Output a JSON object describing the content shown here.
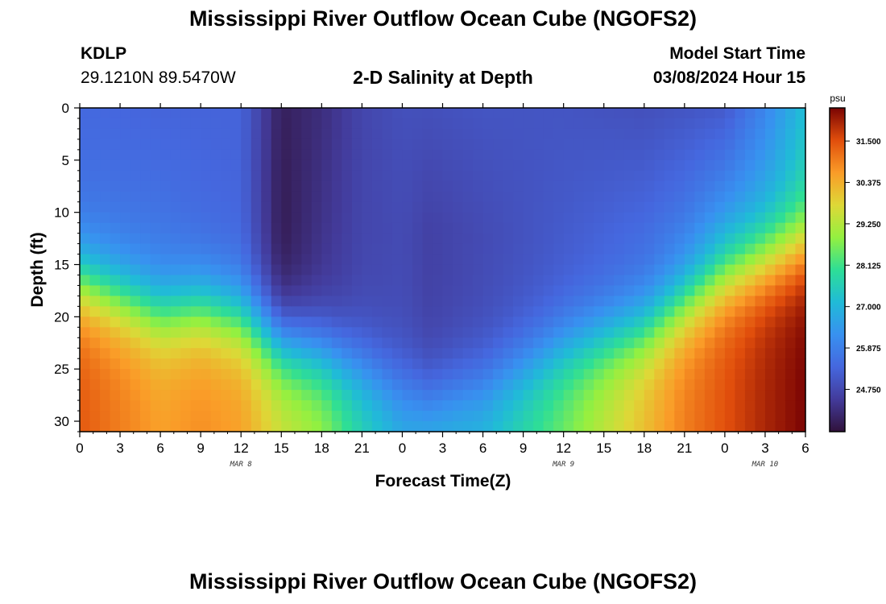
{
  "header": {
    "title": "Mississippi River Outflow Ocean Cube (NGOFS2)",
    "station": "KDLP",
    "coords": "29.1210N  89.5470W",
    "subtitle": "2-D Salinity at Depth",
    "start_label": "Model Start Time",
    "start_value": "03/08/2024 Hour 15"
  },
  "footer": {
    "title": "Mississippi River Outflow Ocean Cube (NGOFS2)"
  },
  "chart_data": {
    "type": "heatmap",
    "title": "2-D Salinity at Depth",
    "xlabel": "Forecast Time(Z)",
    "ylabel": "Depth (ft)",
    "x_ticks": [
      "0",
      "3",
      "6",
      "9",
      "12",
      "15",
      "18",
      "21",
      "0",
      "3",
      "6",
      "9",
      "12",
      "15",
      "18",
      "21",
      "0",
      "3",
      "6"
    ],
    "date_labels": [
      {
        "text": "MAR 8",
        "hour": 12
      },
      {
        "text": "MAR 9",
        "hour": 36
      },
      {
        "text": "MAR 10",
        "hour": 51
      }
    ],
    "x_range_hours": [
      0,
      54
    ],
    "y_ticks": [
      "0",
      "5",
      "10",
      "15",
      "20",
      "25",
      "30"
    ],
    "y_range_ft": [
      0,
      31
    ],
    "colorbar": {
      "unit": "psu",
      "ticks": [
        "31.500",
        "30.375",
        "29.250",
        "28.125",
        "27.000",
        "25.875",
        "24.750"
      ],
      "min": 23.6,
      "max": 32.4
    },
    "profiles": {
      "hours": [
        0,
        6,
        9,
        12,
        15,
        18,
        21,
        24,
        26,
        30,
        36,
        42,
        45,
        48,
        51,
        54
      ],
      "surface": [
        25.4,
        25.3,
        25.3,
        25.3,
        23.9,
        24.2,
        24.7,
        24.9,
        24.9,
        25.0,
        25.0,
        24.9,
        25.0,
        25.1,
        26.0,
        27.2
      ],
      "mid_depth": [
        25.6,
        25.6,
        25.4,
        25.3,
        23.8,
        24.3,
        24.7,
        24.8,
        24.6,
        24.8,
        25.1,
        25.4,
        25.7,
        26.3,
        26.8,
        27.7
      ],
      "bottom": [
        31.4,
        30.6,
        30.8,
        30.6,
        29.6,
        29.0,
        27.8,
        27.0,
        27.2,
        27.2,
        28.6,
        30.2,
        31.0,
        31.5,
        32.0,
        32.4
      ],
      "halocline_depth_ft": [
        16.5,
        19.5,
        19.0,
        20.0,
        22.5,
        23.5,
        25.0,
        27.0,
        28.0,
        26.5,
        23.0,
        21.0,
        18.5,
        16.0,
        14.5,
        13.0
      ]
    },
    "grid": false,
    "legend": "colorbar right"
  }
}
